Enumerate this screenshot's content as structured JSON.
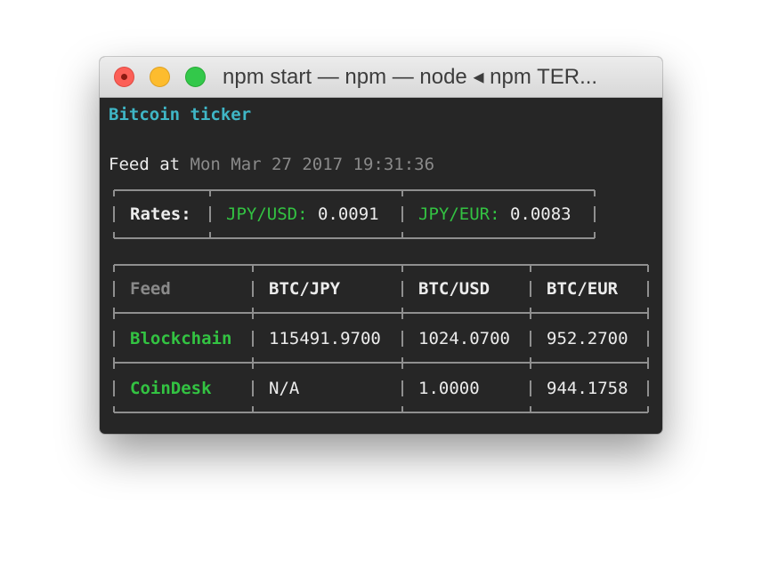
{
  "window": {
    "title": "npm start — npm — node ◂ npm TER..."
  },
  "terminal": {
    "heading": "Bitcoin ticker",
    "feed_prefix": "Feed at ",
    "feed_time": "Mon Mar 27 2017 19:31:36",
    "rates": {
      "label": "Rates:",
      "pair1_label": "JPY/USD:",
      "pair1_value": "0.0091",
      "pair2_label": "JPY/EUR:",
      "pair2_value": "0.0083"
    },
    "table": {
      "headers": [
        "Feed",
        "BTC/JPY",
        "BTC/USD",
        "BTC/EUR"
      ],
      "rows": [
        {
          "feed": "Blockchain",
          "jpy": "115491.9700",
          "usd": "1024.0700",
          "eur": "952.2700"
        },
        {
          "feed": "CoinDesk",
          "jpy": "N/A",
          "usd": "1.0000",
          "eur": "944.1758"
        }
      ]
    }
  },
  "colors": {
    "heading": "#3fb6c6",
    "accent_green": "#33c342",
    "muted": "#8a8a8a",
    "background": "#262626"
  }
}
